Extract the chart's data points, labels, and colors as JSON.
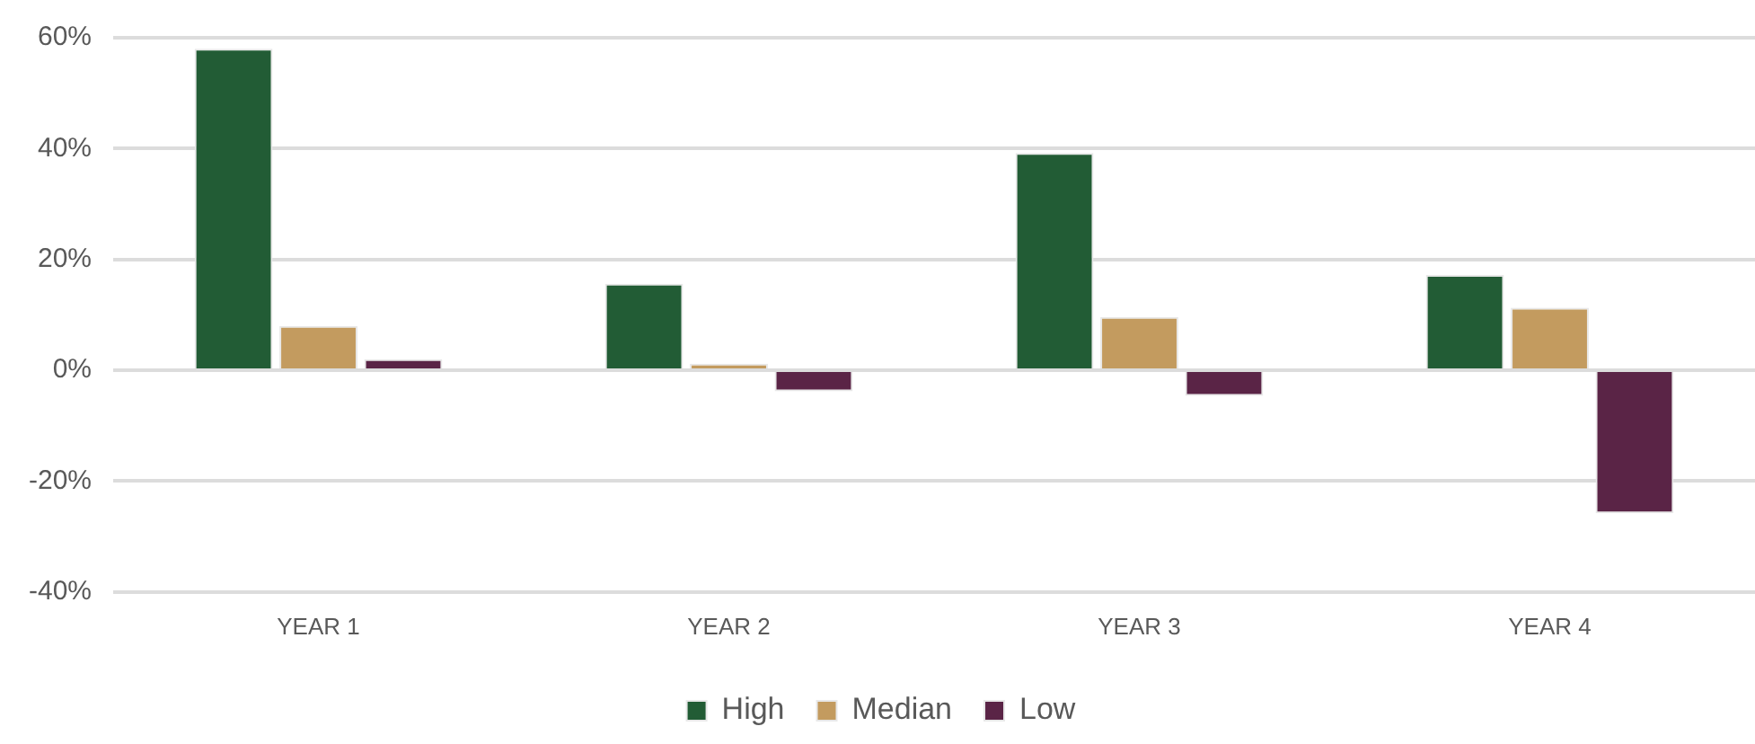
{
  "chart_data": {
    "type": "bar",
    "categories": [
      "YEAR 1",
      "YEAR 2",
      "YEAR 3",
      "YEAR 4"
    ],
    "series": [
      {
        "name": "High",
        "color": "#225c35",
        "values": [
          58,
          15.6,
          39.2,
          17.2
        ]
      },
      {
        "name": "Median",
        "color": "#c39b5f",
        "values": [
          8,
          1.2,
          9.6,
          11.3
        ]
      },
      {
        "name": "Low",
        "color": "#5a2446",
        "values": [
          2,
          -3.8,
          -4.6,
          -25.8
        ]
      }
    ],
    "ylim": [
      -40,
      60
    ],
    "yticks": [
      {
        "value": -40,
        "label": "-40%"
      },
      {
        "value": -20,
        "label": "-20%"
      },
      {
        "value": 0,
        "label": "0%"
      },
      {
        "value": 20,
        "label": "20%"
      },
      {
        "value": 40,
        "label": "40%"
      },
      {
        "value": 60,
        "label": "60%"
      }
    ],
    "grid": "y",
    "legend": "bottom"
  }
}
